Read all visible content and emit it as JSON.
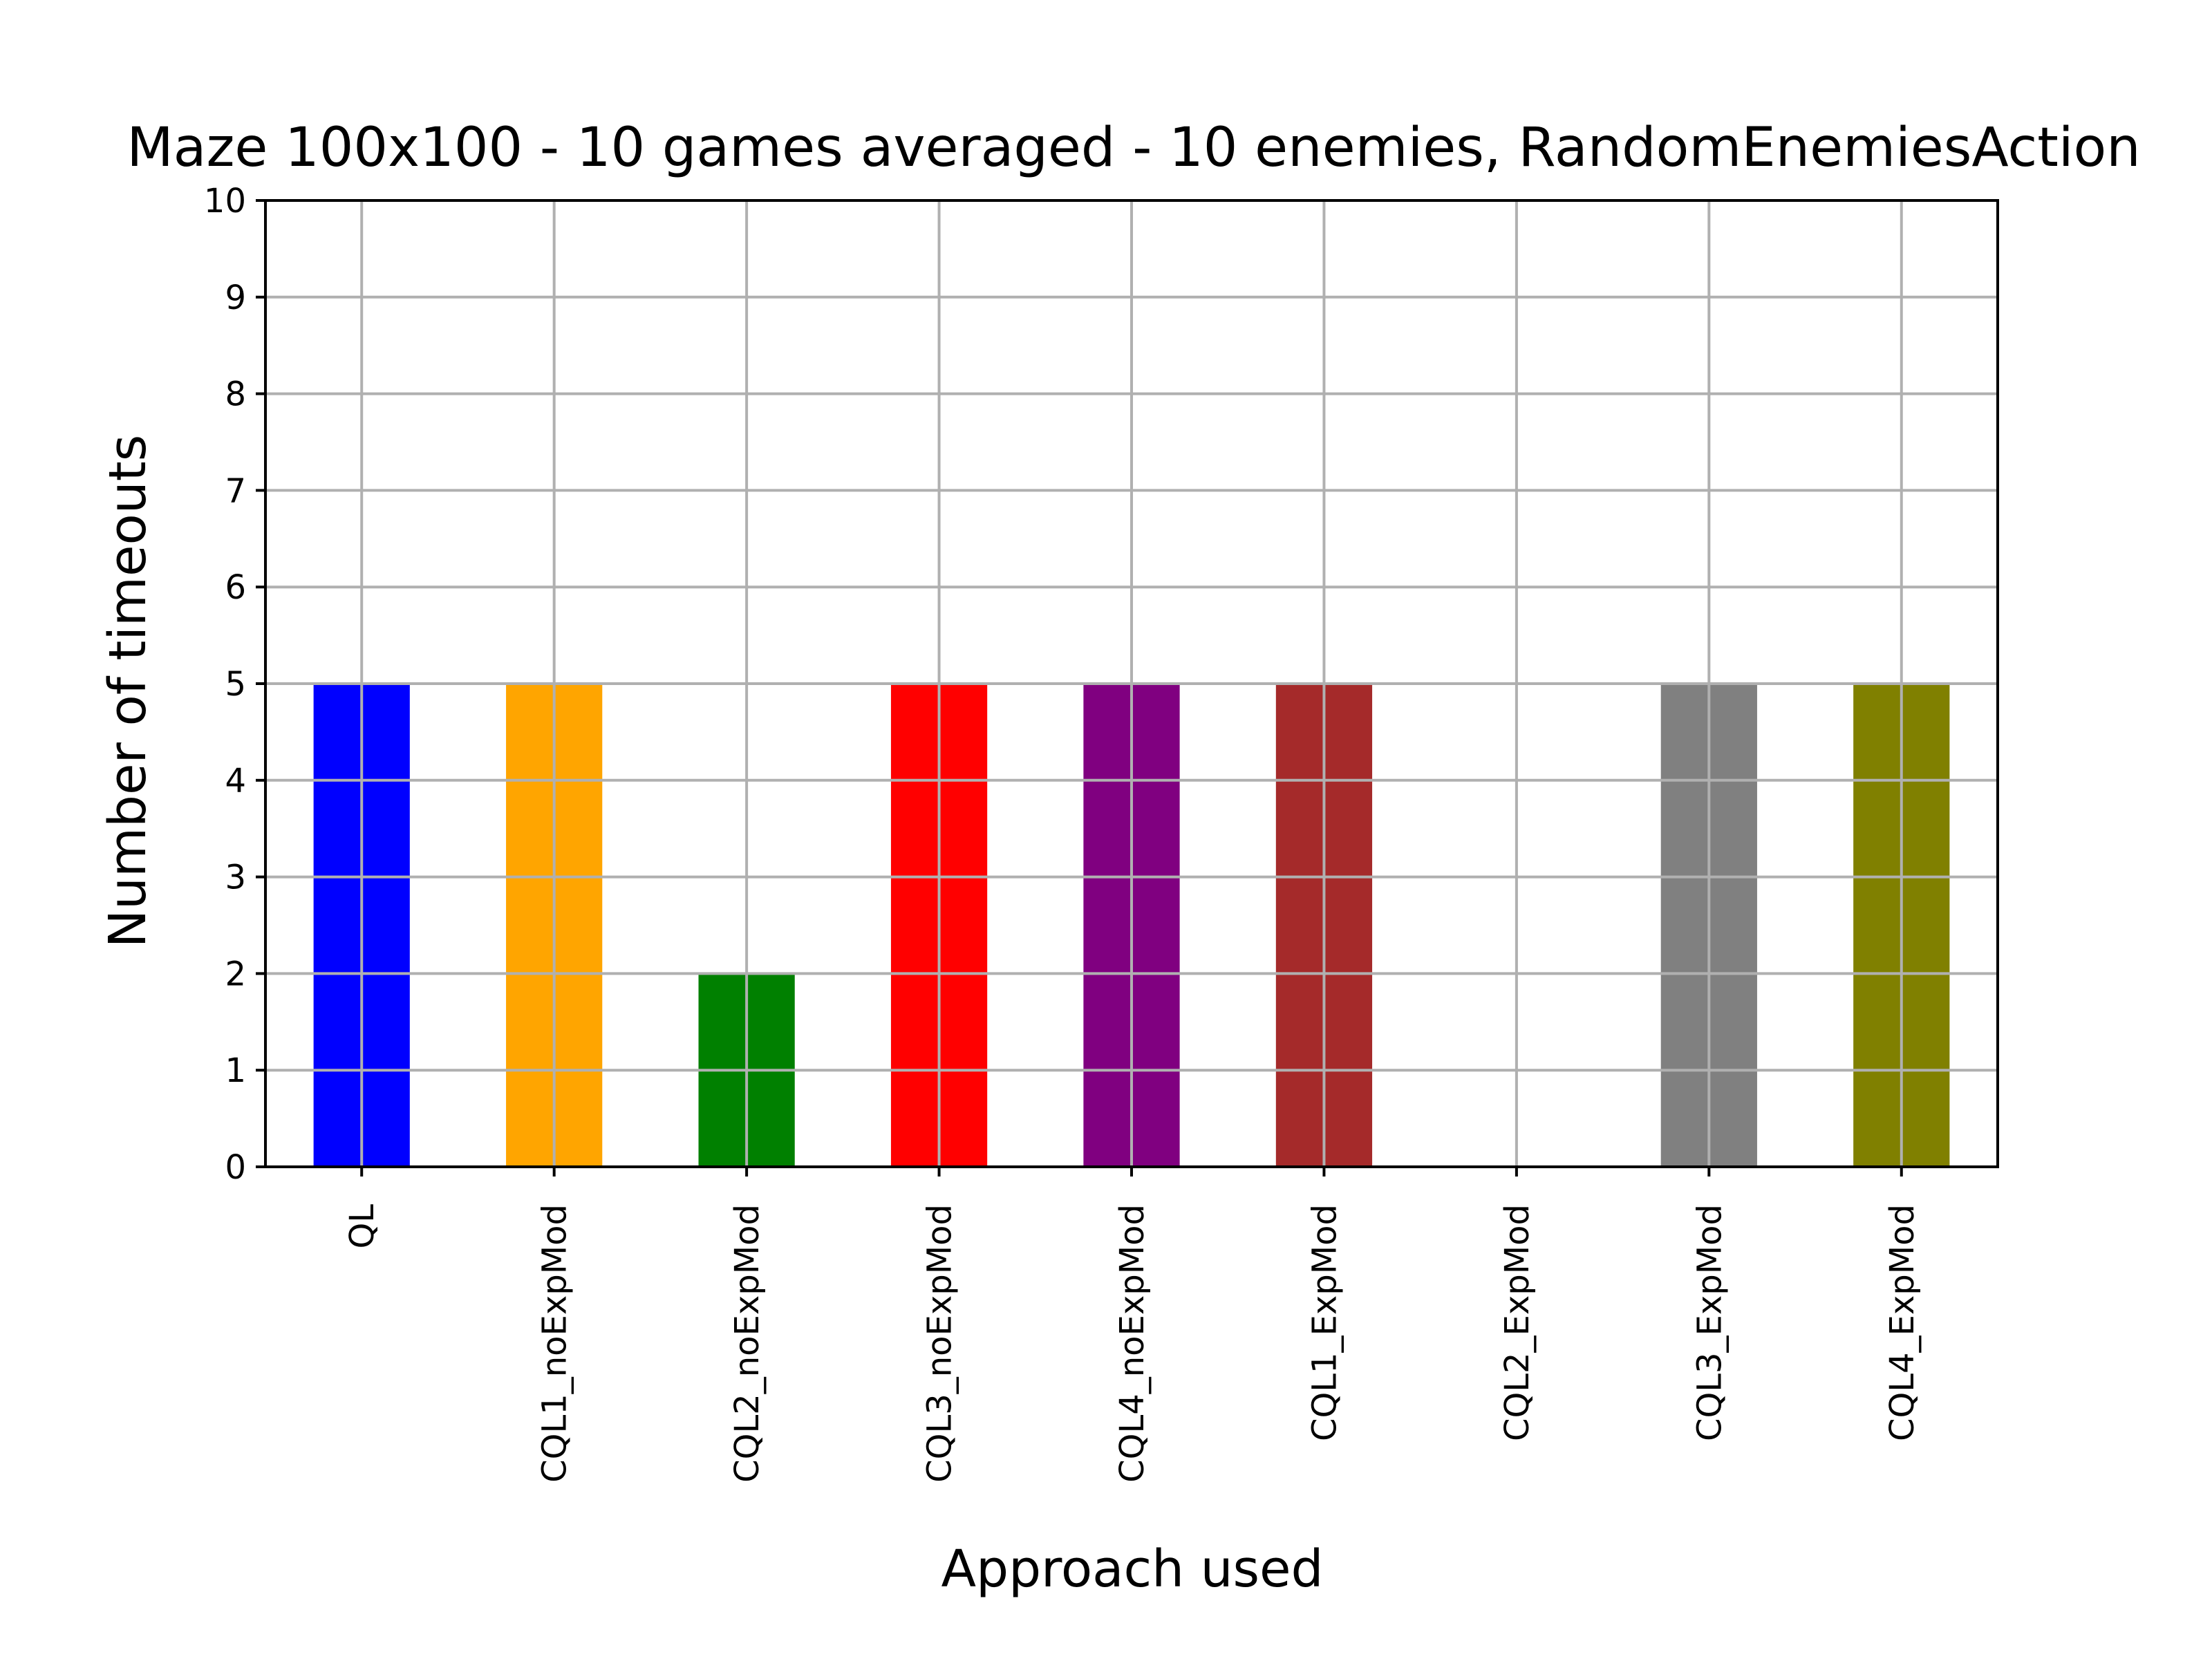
{
  "chart_data": {
    "type": "bar",
    "title": "Maze 100x100 - 10 games averaged - 10 enemies, RandomEnemiesAction",
    "xlabel": "Approach used",
    "ylabel": "Number of timeouts",
    "categories": [
      "QL",
      "CQL1_noExpMod",
      "CQL2_noExpMod",
      "CQL3_noExpMod",
      "CQL4_noExpMod",
      "CQL1_ExpMod",
      "CQL2_ExpMod",
      "CQL3_ExpMod",
      "CQL4_ExpMod"
    ],
    "values": [
      5,
      5,
      2,
      5,
      5,
      5,
      0,
      5,
      5
    ],
    "colors": [
      "#0000ff",
      "#ffa500",
      "#008000",
      "#ff0000",
      "#800080",
      "#a52a2a",
      "#ffc0cb",
      "#808080",
      "#808000"
    ],
    "ylim": [
      0,
      10
    ],
    "yticks": [
      0,
      1,
      2,
      3,
      4,
      5,
      6,
      7,
      8,
      9,
      10
    ],
    "grid": true,
    "xtick_rotation": "vertical"
  }
}
